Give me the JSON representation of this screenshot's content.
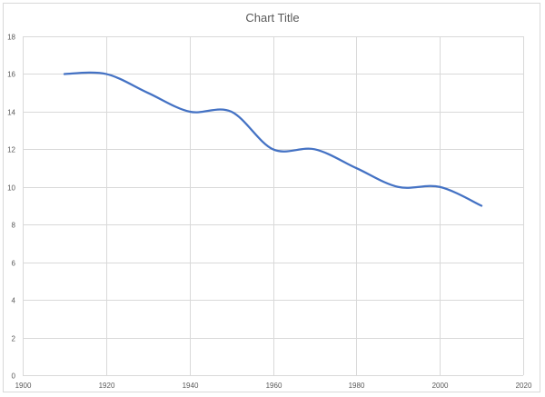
{
  "chart_data": {
    "type": "scatter",
    "subtype": "smooth-line",
    "title": "Chart Title",
    "xlabel": "",
    "ylabel": "",
    "xlim": [
      1900,
      2020
    ],
    "ylim": [
      0,
      18
    ],
    "x_ticks": [
      1900,
      1920,
      1940,
      1960,
      1980,
      2000,
      2020
    ],
    "y_ticks": [
      0,
      2,
      4,
      6,
      8,
      10,
      12,
      14,
      16,
      18
    ],
    "grid": true,
    "legend": "none",
    "series": [
      {
        "x": [
          1910,
          1920,
          1930,
          1940,
          1950,
          1960,
          1970,
          1980,
          1990,
          2000,
          2010
        ],
        "y": [
          16,
          16,
          15,
          14,
          14,
          12,
          12,
          11,
          10,
          10,
          9
        ],
        "color": "#4472C4"
      }
    ],
    "colors": {
      "grid": "#d9d9d9",
      "tick_label": "#595959",
      "title": "#595959"
    }
  }
}
